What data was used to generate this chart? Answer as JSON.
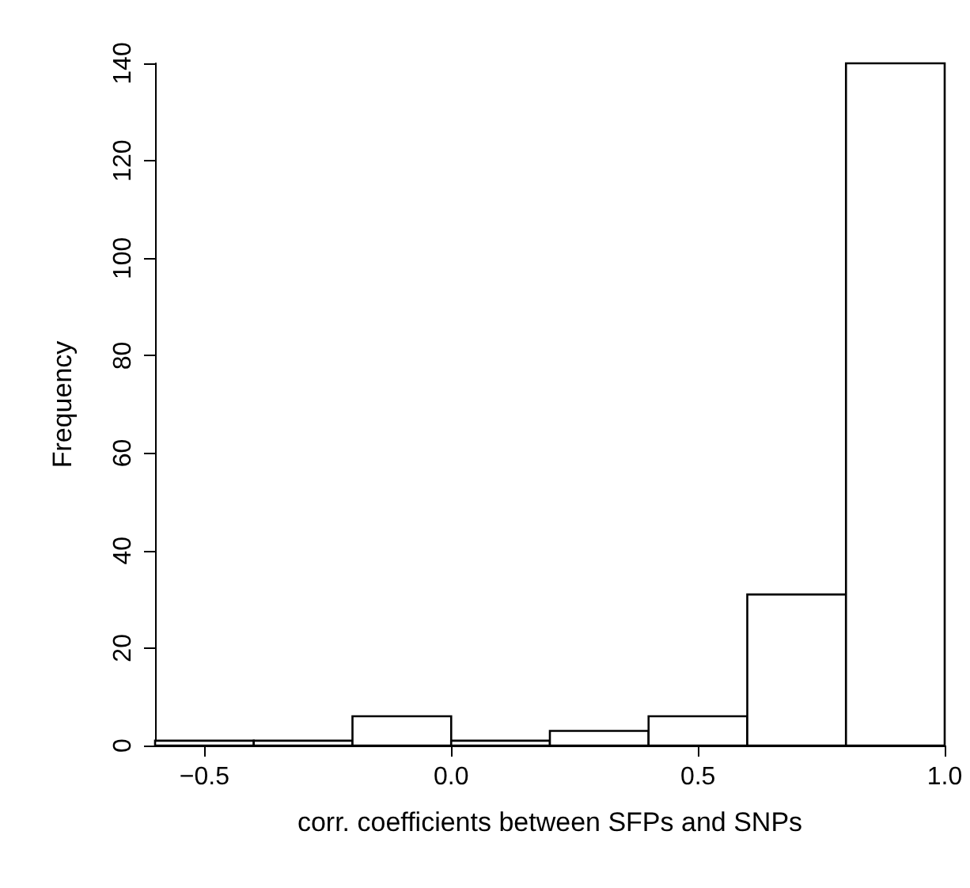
{
  "chart_data": {
    "type": "histogram",
    "xlabel": "corr. coefficients between SFPs and SNPs",
    "ylabel": "Frequency",
    "bins": [
      -0.6,
      -0.4,
      -0.2,
      0.0,
      0.2,
      0.4,
      0.6,
      0.8,
      1.0
    ],
    "values": [
      1,
      1,
      6,
      1,
      3,
      6,
      31,
      140
    ],
    "color": "#ffffff",
    "xlim": [
      -0.6,
      1.0
    ],
    "xticks": [
      {
        "value": -0.5,
        "label": "−0.5"
      },
      {
        "value": 0,
        "label": "0.0"
      },
      {
        "value": 0.5,
        "label": "0.5"
      },
      {
        "value": 1,
        "label": "1.0"
      }
    ],
    "ylim": [
      0,
      140
    ],
    "yticks": [
      0,
      20,
      40,
      60,
      80,
      100,
      120,
      140
    ],
    "grid": false
  }
}
